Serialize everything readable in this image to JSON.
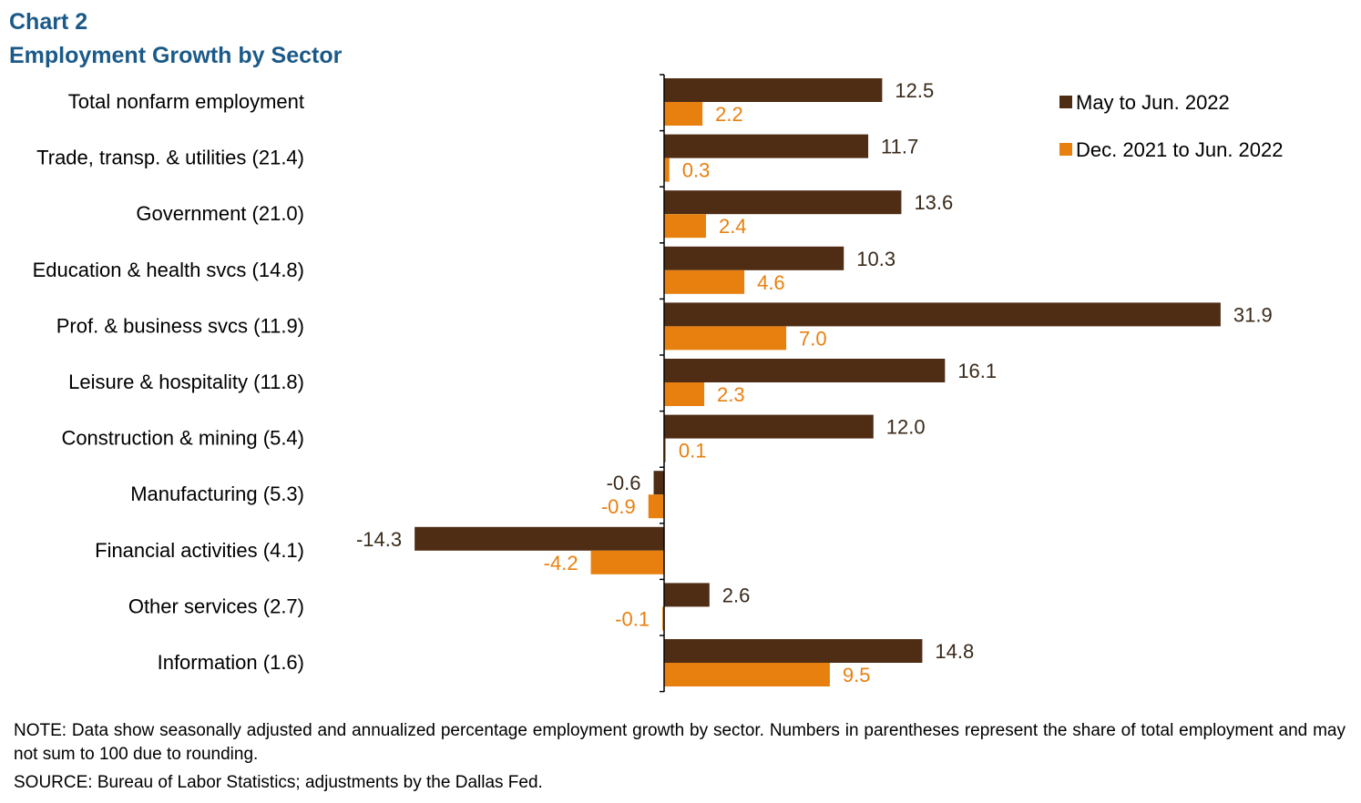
{
  "chart_label": "Chart 2",
  "chart_title": "Employment Growth by Sector",
  "note": "NOTE: Data show seasonally adjusted and annualized percentage employment growth by sector. Numbers in parentheses represent the share of total employment and may not sum to 100 due to rounding.",
  "source": "SOURCE: Bureau of Labor Statistics; adjustments by the Dallas Fed.",
  "colors": {
    "series1": "#4f2c14",
    "series2": "#e8800f",
    "axis": "#000000"
  },
  "chart_data": {
    "type": "bar",
    "orientation": "horizontal",
    "title": "Employment Growth by Sector",
    "categories": [
      "Total nonfarm employment",
      "Trade, transp. & utilities (21.4)",
      "Government (21.0)",
      "Education & health svcs (14.8)",
      "Prof. & business svcs (11.9)",
      "Leisure & hospitality (11.8)",
      "Construction & mining (5.4)",
      "Manufacturing (5.3)",
      "Financial activities (4.1)",
      "Other services (2.7)",
      "Information (1.6)"
    ],
    "series": [
      {
        "name": "May to Jun. 2022",
        "values": [
          12.5,
          11.7,
          13.6,
          10.3,
          31.9,
          16.1,
          12.0,
          -0.6,
          -14.3,
          2.6,
          14.8
        ],
        "labels": [
          "12.5",
          "11.7",
          "13.6",
          "10.3",
          "31.9",
          "16.1",
          "12.0",
          "-0.6",
          "-14.3",
          "2.6",
          "14.8"
        ]
      },
      {
        "name": "Dec. 2021 to Jun. 2022",
        "values": [
          2.2,
          0.3,
          2.4,
          4.6,
          7.0,
          2.3,
          0.1,
          -0.9,
          -4.2,
          -0.1,
          9.5
        ],
        "labels": [
          "2.2",
          "0.3",
          "2.4",
          "4.6",
          "7.0",
          "2.3",
          "0.1",
          "-0.9",
          "-4.2",
          "-0.1",
          "9.5"
        ]
      }
    ],
    "legend_position": "top-right",
    "grid": false
  }
}
